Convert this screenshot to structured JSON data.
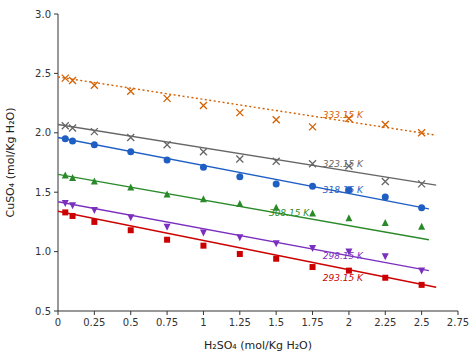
{
  "chart_data": {
    "type": "line",
    "xlabel": "H₂SO₄ (mol/Kg H₂O)",
    "ylabel": "CuSO₄ (mol/Kg H₂O)",
    "xlim": [
      0,
      2.75
    ],
    "ylim": [
      0.5,
      3.0
    ],
    "xticks": [
      0,
      0.25,
      0.5,
      0.75,
      1,
      1.25,
      1.5,
      1.75,
      2,
      2.25,
      2.5,
      2.75
    ],
    "yticks": [
      0.5,
      {
        "value": 1.0,
        "label": "1.0"
      },
      1.5,
      {
        "value": 2.0,
        "label": "2.0"
      },
      2.5,
      {
        "value": 3.0,
        "label": "3.0"
      }
    ],
    "grid": false,
    "series": [
      {
        "name": "333.15 K",
        "color": "#d46000",
        "marker": "x",
        "line_style": "dotted",
        "x": [
          0.05,
          0.1,
          0.25,
          0.5,
          0.75,
          1.0,
          1.25,
          1.5,
          1.75,
          2.0,
          2.25,
          2.5
        ],
        "values": [
          2.46,
          2.44,
          2.4,
          2.35,
          2.29,
          2.23,
          2.17,
          2.11,
          2.05,
          2.12,
          2.07,
          2.0
        ],
        "fit_x": [
          0.0,
          2.6
        ],
        "fit_y": [
          2.47,
          1.98
        ],
        "label_x": 1.82,
        "label_y": 2.15
      },
      {
        "name": "323.15 K",
        "color": "#666666",
        "marker": "x",
        "line_style": "solid",
        "x": [
          0.05,
          0.1,
          0.25,
          0.5,
          0.75,
          1.0,
          1.25,
          1.5,
          1.75,
          2.0,
          2.25,
          2.5
        ],
        "values": [
          2.06,
          2.04,
          2.01,
          1.96,
          1.9,
          1.84,
          1.78,
          1.76,
          1.74,
          1.72,
          1.59,
          1.57
        ],
        "fit_x": [
          0.0,
          2.6
        ],
        "fit_y": [
          2.07,
          1.56
        ],
        "label_x": 1.82,
        "label_y": 1.74
      },
      {
        "name": "318.15 K",
        "color": "#1f5fc4",
        "marker": "circle",
        "line_style": "solid",
        "x": [
          0.05,
          0.1,
          0.25,
          0.5,
          0.75,
          1.0,
          1.25,
          1.5,
          1.75,
          2.0,
          2.25,
          2.5
        ],
        "values": [
          1.95,
          1.93,
          1.9,
          1.84,
          1.77,
          1.71,
          1.63,
          1.57,
          1.55,
          1.52,
          1.46,
          1.37
        ],
        "fit_x": [
          0.0,
          2.55
        ],
        "fit_y": [
          1.96,
          1.36
        ],
        "label_x": 1.82,
        "label_y": 1.52
      },
      {
        "name": "308.15 K",
        "color": "#2a8a2a",
        "marker": "triangle-up",
        "line_style": "solid",
        "x": [
          0.05,
          0.1,
          0.25,
          0.5,
          0.75,
          1.0,
          1.25,
          1.5,
          1.75,
          2.0,
          2.25,
          2.5
        ],
        "values": [
          1.64,
          1.62,
          1.59,
          1.54,
          1.48,
          1.44,
          1.4,
          1.37,
          1.32,
          1.28,
          1.24,
          1.21
        ],
        "fit_x": [
          0.0,
          2.55
        ],
        "fit_y": [
          1.65,
          1.1
        ],
        "label_x": 1.45,
        "label_y": 1.33
      },
      {
        "name": "298.15 K",
        "color": "#7b2fbe",
        "marker": "triangle-down",
        "line_style": "solid",
        "x": [
          0.05,
          0.1,
          0.25,
          0.5,
          0.75,
          1.0,
          1.25,
          1.5,
          1.75,
          2.0,
          2.25,
          2.5
        ],
        "values": [
          1.41,
          1.39,
          1.35,
          1.29,
          1.21,
          1.16,
          1.12,
          1.07,
          1.03,
          1.0,
          0.96,
          0.84
        ],
        "fit_x": [
          0.0,
          2.55
        ],
        "fit_y": [
          1.42,
          0.84
        ],
        "label_x": 1.82,
        "label_y": 0.97
      },
      {
        "name": "293.15 K",
        "color": "#cc0000",
        "marker": "square",
        "line_style": "solid",
        "x": [
          0.05,
          0.1,
          0.25,
          0.5,
          0.75,
          1.0,
          1.25,
          1.5,
          1.75,
          2.0,
          2.25,
          2.5
        ],
        "values": [
          1.33,
          1.3,
          1.25,
          1.18,
          1.1,
          1.05,
          0.98,
          0.94,
          0.87,
          0.84,
          0.78,
          0.72
        ],
        "fit_x": [
          0.0,
          2.6
        ],
        "fit_y": [
          1.34,
          0.7
        ],
        "label_x": 1.82,
        "label_y": 0.78
      }
    ]
  }
}
